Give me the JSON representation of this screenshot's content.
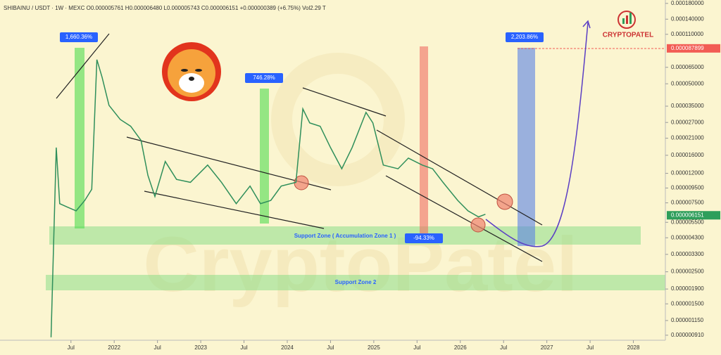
{
  "chart_data": {
    "type": "line",
    "title": "SHIBAINU / USDT · 1W · MEXC  O0.000005761 H0.000006480 L0.000005743 C0.000006151 +0.000000389 (+6.75%)  Vol2.29 T",
    "logo": "CRYPTOPATEL",
    "watermark": "CryptoPatel",
    "log_scale": true,
    "x": [
      2021.27,
      2021.33,
      2021.37,
      2021.46,
      2021.56,
      2021.66,
      2021.74,
      2021.8,
      2021.86,
      2021.94,
      2022.07,
      2022.19,
      2022.31,
      2022.39,
      2022.47,
      2022.59,
      2022.72,
      2022.88,
      2023.08,
      2023.24,
      2023.41,
      2023.57,
      2023.69,
      2023.81,
      2023.93,
      2024.1,
      2024.18,
      2024.26,
      2024.38,
      2024.5,
      2024.63,
      2024.75,
      2024.91,
      2024.99,
      2025.11,
      2025.28,
      2025.4,
      2025.56,
      2025.68,
      2025.8,
      2025.97,
      2026.09,
      2026.21,
      2026.29
    ],
    "series": [
      {
        "name": "SHIBAINU / USDT",
        "color": "#2f8f5b",
        "values": [
          8.8e-07,
          1.81e-05,
          7.4e-06,
          7e-06,
          6.6e-06,
          7.8e-06,
          9.3e-06,
          7.35e-05,
          5.55e-05,
          3.55e-05,
          2.83e-05,
          2.54e-05,
          2.03e-05,
          1.16e-05,
          8.3e-06,
          1.45e-05,
          1.09e-05,
          1.04e-05,
          1.37e-05,
          1.04e-05,
          7.4e-06,
          9.8e-06,
          7.4e-06,
          7.8e-06,
          9.8e-06,
          1.04e-05,
          3.35e-05,
          2.68e-05,
          2.54e-05,
          1.81e-05,
          1.29e-05,
          1.81e-05,
          3.17e-05,
          2.68e-05,
          1.37e-05,
          1.29e-05,
          1.53e-05,
          1.37e-05,
          1.29e-05,
          1.04e-05,
          7.8e-06,
          6.6e-06,
          6e-06,
          6.25e-06
        ]
      }
    ],
    "xlim": [
      2020.68,
      2028.37
    ],
    "xticks": [
      {
        "value": 2021.5,
        "label": "Jul"
      },
      2022,
      {
        "value": 2022.5,
        "label": "Jul"
      },
      2023,
      {
        "value": 2023.5,
        "label": "Jul"
      },
      2024,
      {
        "value": 2024.5,
        "label": "Jul"
      },
      2025,
      {
        "value": 2025.5,
        "label": "Jul"
      },
      2026,
      {
        "value": 2026.5,
        "label": "Jul"
      },
      2027,
      {
        "value": 2027.5,
        "label": "Jul"
      },
      2028
    ],
    "ylim": [
      8.4e-07,
      0.00019
    ],
    "yticks": [
      {
        "value": 0.00018,
        "label": "0.000180000"
      },
      {
        "value": 0.00014,
        "label": "0.000140000"
      },
      {
        "value": 0.00011,
        "label": "0.000110000"
      },
      {
        "value": 6.5e-05,
        "label": "0.000065000"
      },
      {
        "value": 5e-05,
        "label": "0.000050000"
      },
      {
        "value": 3.5e-05,
        "label": "0.000035000"
      },
      {
        "value": 2.7e-05,
        "label": "0.000027000"
      },
      {
        "value": 2.1e-05,
        "label": "0.000021000"
      },
      {
        "value": 1.6e-05,
        "label": "0.000016000"
      },
      {
        "value": 1.2e-05,
        "label": "0.000012000"
      },
      {
        "value": 9.5e-06,
        "label": "0.000009500"
      },
      {
        "value": 7.5e-06,
        "label": "0.000007500"
      },
      {
        "value": 5.5e-06,
        "label": "0.000005500"
      },
      {
        "value": 4.3e-06,
        "label": "0.000004300"
      },
      {
        "value": 3.3e-06,
        "label": "0.000003300"
      },
      {
        "value": 2.5e-06,
        "label": "0.000002500"
      },
      {
        "value": 1.9e-06,
        "label": "0.000001900"
      },
      {
        "value": 1.5e-06,
        "label": "0.000001500"
      },
      {
        "value": 1.15e-06,
        "label": "0.000001150"
      },
      {
        "value": 9.1e-07,
        "label": "0.000000910"
      }
    ],
    "price_markers": [
      {
        "value": 8.7899e-05,
        "label": "0.000087899",
        "color": "#f25c54"
      },
      {
        "value": 6.151e-06,
        "label": "0.000006151",
        "color": "#2e9e5b"
      }
    ],
    "annotations": [
      "1,660.36%",
      "746.28%",
      "-94.33%",
      "2,203.86%",
      "Support Zone ( Accumulation Zone 1 )",
      "Support Zone 2"
    ]
  }
}
